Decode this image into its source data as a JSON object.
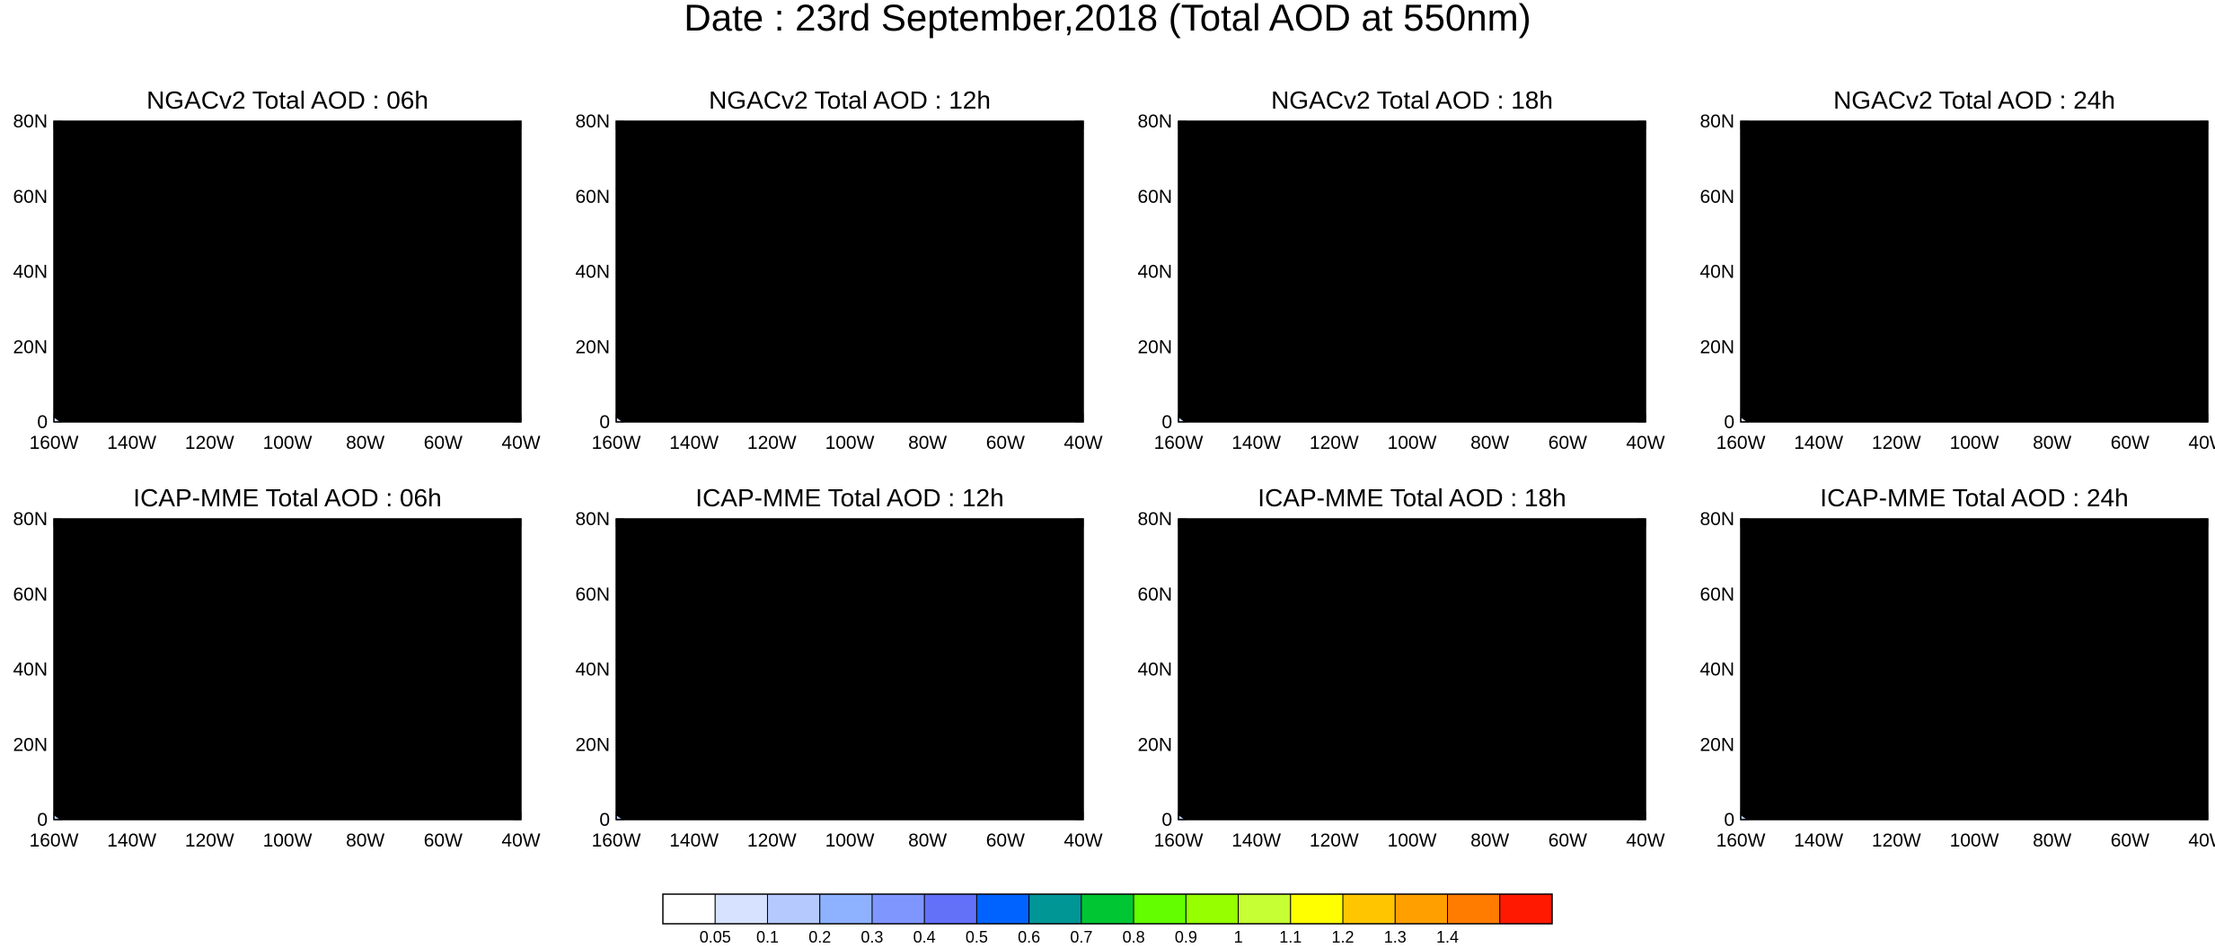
{
  "figure": {
    "title": "Date : 23rd September,2018 (Total AOD at 550nm)"
  },
  "map_data": {
    "projection": "cylindrical-equidistant",
    "lon_range": [
      -160,
      -40
    ],
    "lat_range": [
      0,
      80
    ],
    "lon_ticks": [
      -160,
      -140,
      -120,
      -100,
      -80,
      -60,
      -40
    ],
    "lon_tick_labels": [
      "160W",
      "140W",
      "120W",
      "100W",
      "80W",
      "60W",
      "40W"
    ],
    "lat_ticks": [
      0,
      20,
      40,
      60,
      80
    ],
    "lat_tick_labels": [
      "0",
      "20N",
      "40N",
      "60N",
      "80N"
    ],
    "variable": "Total AOD at 550nm",
    "panels": [
      {
        "title": "NGACv2 Total AOD : 06h"
      },
      {
        "title": "NGACv2 Total AOD : 12h"
      },
      {
        "title": "NGACv2 Total AOD : 18h"
      },
      {
        "title": "NGACv2 Total AOD : 24h"
      },
      {
        "title": "ICAP-MME Total AOD : 06h"
      },
      {
        "title": "ICAP-MME Total AOD : 12h"
      },
      {
        "title": "ICAP-MME Total AOD : 18h"
      },
      {
        "title": "ICAP-MME Total AOD : 24h"
      }
    ]
  },
  "colorbar": {
    "colors": [
      "#ffffff",
      "#d6e2ff",
      "#b5c9ff",
      "#8eb2ff",
      "#7f96ff",
      "#6370f8",
      "#0063ff",
      "#009696",
      "#00c633",
      "#63ff00",
      "#96ff00",
      "#c6ff33",
      "#ffff00",
      "#ffc600",
      "#ffa000",
      "#ff7c00",
      "#ff1900"
    ],
    "labels": [
      "0.05",
      "0.1",
      "0.2",
      "0.3",
      "0.4",
      "0.5",
      "0.6",
      "0.7",
      "0.8",
      "0.9",
      "1",
      "1.1",
      "1.2",
      "1.3",
      "1.4"
    ]
  }
}
